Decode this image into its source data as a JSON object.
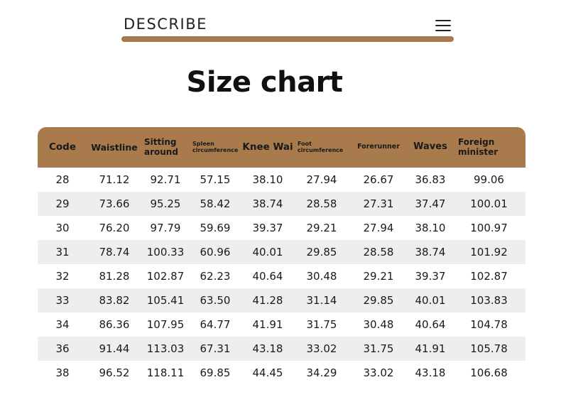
{
  "header": {
    "title": "DESCRIBE",
    "menu_icon": "hamburger-menu-icon",
    "accent_color": "#a87a4c"
  },
  "page_title": "Size chart",
  "chart_data": {
    "type": "table",
    "columns": [
      "Code",
      "Waistline",
      "Sitting around",
      "Spleen circumference",
      "Knee Wai",
      "Foot circumference",
      "Forerunner",
      "Waves",
      "Foreign minister"
    ],
    "rows": [
      [
        "28",
        "71.12",
        "92.71",
        "57.15",
        "38.10",
        "27.94",
        "26.67",
        "36.83",
        "99.06"
      ],
      [
        "29",
        "73.66",
        "95.25",
        "58.42",
        "38.74",
        "28.58",
        "27.31",
        "37.47",
        "100.01"
      ],
      [
        "30",
        "76.20",
        "97.79",
        "59.69",
        "39.37",
        "29.21",
        "27.94",
        "38.10",
        "100.97"
      ],
      [
        "31",
        "78.74",
        "100.33",
        "60.96",
        "40.01",
        "29.85",
        "28.58",
        "38.74",
        "101.92"
      ],
      [
        "32",
        "81.28",
        "102.87",
        "62.23",
        "40.64",
        "30.48",
        "29.21",
        "39.37",
        "102.87"
      ],
      [
        "33",
        "83.82",
        "105.41",
        "63.50",
        "41.28",
        "31.14",
        "29.85",
        "40.01",
        "103.83"
      ],
      [
        "34",
        "86.36",
        "107.95",
        "64.77",
        "41.91",
        "31.75",
        "30.48",
        "40.64",
        "104.78"
      ],
      [
        "36",
        "91.44",
        "113.03",
        "67.31",
        "43.18",
        "33.02",
        "31.75",
        "41.91",
        "105.78"
      ],
      [
        "38",
        "96.52",
        "118.11",
        "69.85",
        "44.45",
        "34.29",
        "33.02",
        "43.18",
        "106.68"
      ]
    ]
  }
}
